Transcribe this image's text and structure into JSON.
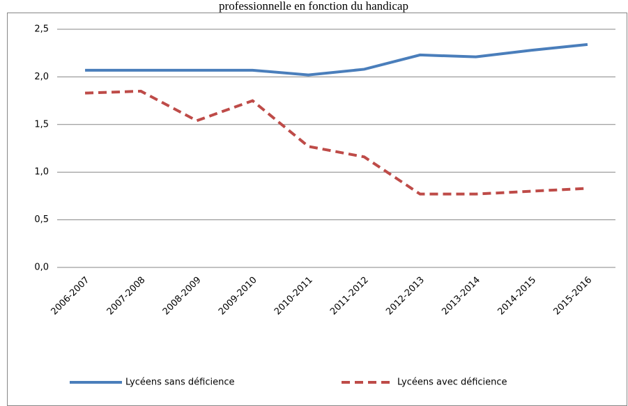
{
  "chart_data": {
    "type": "line",
    "title": "professionnelle en fonction du handicap",
    "categories": [
      "2006-2007",
      "2007-2008",
      "2008-2009",
      "2009-2010",
      "2010-2011",
      "2011-2012",
      "2012-2013",
      "2013-2014",
      "2014-2015",
      "2015-2016"
    ],
    "series": [
      {
        "name": "Lycéens sans déficience",
        "color": "#4a7ebb",
        "dash": false,
        "values": [
          2.07,
          2.07,
          2.07,
          2.07,
          2.02,
          2.08,
          2.23,
          2.21,
          2.28,
          2.34
        ]
      },
      {
        "name": "Lycéens avec déficience",
        "color": "#be4b48",
        "dash": true,
        "values": [
          1.83,
          1.85,
          1.54,
          1.75,
          1.27,
          1.16,
          0.77,
          0.77,
          0.8,
          0.83
        ]
      }
    ],
    "ylim": [
      0,
      2.5
    ],
    "yticks": [
      {
        "value": 0,
        "label": "0,0"
      },
      {
        "value": 0.5,
        "label": "0,5"
      },
      {
        "value": 1,
        "label": "1,0"
      },
      {
        "value": 1.5,
        "label": "1,5"
      },
      {
        "value": 2,
        "label": "2,0"
      },
      {
        "value": 2.5,
        "label": "2,5"
      }
    ],
    "grid": true,
    "legend": "bottom"
  }
}
